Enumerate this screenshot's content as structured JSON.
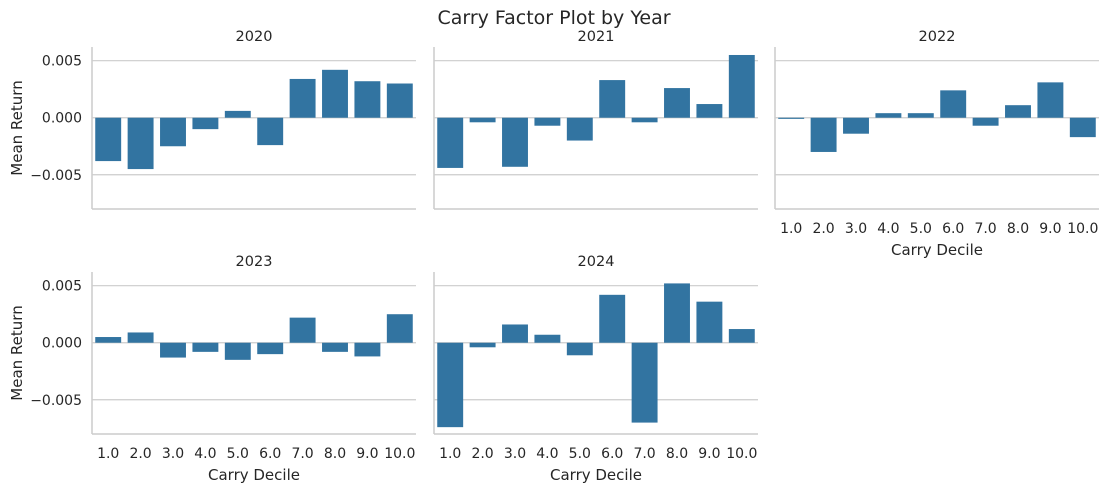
{
  "title": "Carry Factor Plot by Year",
  "chart_data": {
    "type": "bar",
    "title": "Carry Factor Plot by Year",
    "xlabel": "Carry Decile",
    "ylabel": "Mean Return",
    "ylim": [
      -0.008,
      0.0062
    ],
    "yticks": [
      0.005,
      0.0,
      -0.005
    ],
    "ytick_labels": [
      "0.005",
      "0.000",
      "−0.005"
    ],
    "categories": [
      "1.0",
      "2.0",
      "3.0",
      "4.0",
      "5.0",
      "6.0",
      "7.0",
      "8.0",
      "9.0",
      "10.0"
    ],
    "bar_color": "#3274a1",
    "grid": "y",
    "facets": [
      {
        "title": "2020",
        "values": [
          -0.0038,
          -0.0045,
          -0.0025,
          -0.001,
          0.0006,
          -0.0024,
          0.0034,
          0.0042,
          0.0032,
          0.003
        ]
      },
      {
        "title": "2021",
        "values": [
          -0.0044,
          -0.0004,
          -0.0043,
          -0.0007,
          -0.002,
          0.0033,
          -0.0004,
          0.0026,
          0.0012,
          0.0055
        ]
      },
      {
        "title": "2022",
        "values": [
          -0.0001,
          -0.003,
          -0.0014,
          0.0004,
          0.0004,
          0.0024,
          -0.0007,
          0.0011,
          0.0031,
          -0.0017
        ]
      },
      {
        "title": "2023",
        "values": [
          0.0005,
          0.0009,
          -0.0013,
          -0.0008,
          -0.0015,
          -0.001,
          0.0022,
          -0.0008,
          -0.0012,
          0.0025
        ]
      },
      {
        "title": "2024",
        "values": [
          -0.0074,
          -0.0004,
          0.0016,
          0.0007,
          -0.0011,
          0.0042,
          -0.007,
          0.0052,
          0.0036,
          0.0012
        ]
      }
    ]
  }
}
